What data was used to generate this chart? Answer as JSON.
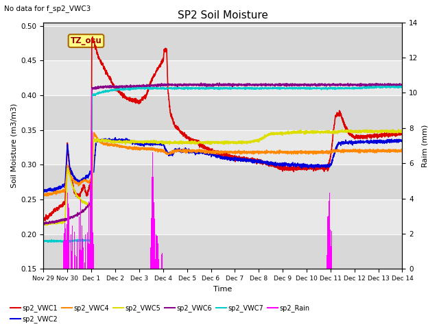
{
  "title": "SP2 Soil Moisture",
  "no_data_text": "No data for f_sp2_VWC3",
  "tz_label": "TZ_osu",
  "ylabel_left": "Soil Moisture (m3/m3)",
  "ylabel_right": "Raim (mm)",
  "xlabel": "Time",
  "ylim_left": [
    0.15,
    0.505
  ],
  "ylim_right": [
    0,
    14
  ],
  "background_color": "#ffffff",
  "plot_bg_color": "#e0e0e0",
  "grid_stripe_color": "#cccccc",
  "series_colors": {
    "sp2_VWC1": "#dd0000",
    "sp2_VWC2": "#0000dd",
    "sp2_VWC4": "#ff8800",
    "sp2_VWC5": "#dddd00",
    "sp2_VWC6": "#880088",
    "sp2_VWC7": "#00cccc",
    "sp2_Rain": "#ff00ff"
  },
  "x_tick_labels": [
    "Nov 29",
    "Nov 30",
    "Dec 1",
    "Dec 2",
    "Dec 3",
    "Dec 4",
    "Dec 5",
    "Dec 6",
    "Dec 7",
    "Dec 8",
    "Dec 9",
    "Dec 10",
    "Dec 11",
    "Dec 12",
    "Dec 13",
    "Dec 14"
  ],
  "x_tick_positions": [
    0,
    1,
    2,
    3,
    4,
    5,
    6,
    7,
    8,
    9,
    10,
    11,
    12,
    13,
    14,
    15
  ],
  "yticks_left": [
    0.15,
    0.2,
    0.25,
    0.3,
    0.35,
    0.4,
    0.45,
    0.5
  ],
  "yticks_right": [
    0,
    2,
    4,
    6,
    8,
    10,
    12,
    14
  ]
}
